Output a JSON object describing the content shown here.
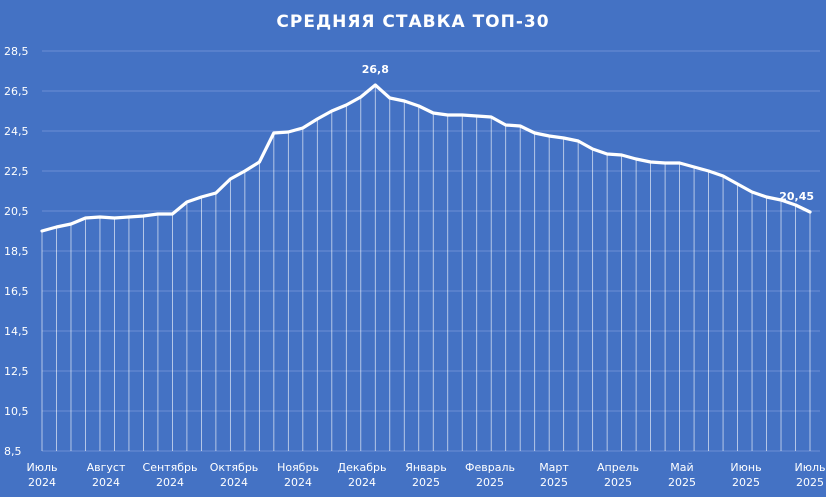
{
  "chart_data": {
    "type": "area",
    "title": "СРЕДНЯЯ СТАВКА ТОП-30",
    "xlabel": "",
    "ylabel": "",
    "ylim": [
      8.5,
      28.5
    ],
    "yticks": [
      "28,5",
      "26,5",
      "24,5",
      "22,5",
      "20,5",
      "18,5",
      "16,5",
      "14,5",
      "12,5",
      "10,5",
      "8,5"
    ],
    "xticks": [
      {
        "month": "Июль",
        "year": "2024"
      },
      {
        "month": "Август",
        "year": "2024"
      },
      {
        "month": "Сентябрь",
        "year": "2024"
      },
      {
        "month": "Октябрь",
        "year": "2024"
      },
      {
        "month": "Ноябрь",
        "year": "2024"
      },
      {
        "month": "Декабрь",
        "year": "2024"
      },
      {
        "month": "Январь",
        "year": "2025"
      },
      {
        "month": "Февраль",
        "year": "2025"
      },
      {
        "month": "Март",
        "year": "2025"
      },
      {
        "month": "Апрель",
        "year": "2025"
      },
      {
        "month": "Май",
        "year": "2025"
      },
      {
        "month": "Июнь",
        "year": "2025"
      },
      {
        "month": "Июль",
        "year": "2025"
      }
    ],
    "values": [
      19.5,
      19.7,
      19.85,
      20.15,
      20.2,
      20.15,
      20.2,
      20.25,
      20.35,
      20.35,
      20.95,
      21.2,
      21.4,
      22.1,
      22.5,
      22.95,
      24.4,
      24.45,
      24.65,
      25.1,
      25.5,
      25.8,
      26.2,
      26.8,
      26.15,
      26.0,
      25.75,
      25.4,
      25.3,
      25.3,
      25.25,
      25.2,
      24.8,
      24.75,
      24.4,
      24.25,
      24.15,
      24.0,
      23.6,
      23.35,
      23.3,
      23.1,
      22.95,
      22.9,
      22.9,
      22.7,
      22.5,
      22.25,
      21.85,
      21.45,
      21.2,
      21.05,
      20.8,
      20.45
    ],
    "data_labels": [
      {
        "index": 23,
        "text": "26,8"
      },
      {
        "index": 53,
        "text": "20,45"
      }
    ],
    "grid": true,
    "legend": "none",
    "colors": {
      "background": "#4472C4",
      "line": "#FFFFFF",
      "grid": "#6B8FD4",
      "droplines": "#FFFFFF"
    }
  }
}
